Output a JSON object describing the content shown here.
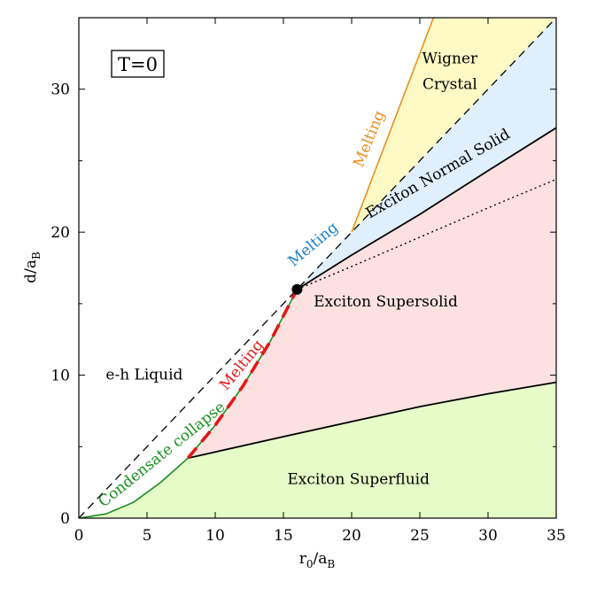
{
  "chart_data": {
    "type": "phase-diagram",
    "title": "",
    "xlabel": {
      "base": "r",
      "sub1": "0",
      "mid": "/a",
      "sub2": "B"
    },
    "ylabel": {
      "base": "d/a",
      "sub": "B"
    },
    "xlim": [
      0,
      35
    ],
    "ylim": [
      0,
      35
    ],
    "xticks": [
      0,
      5,
      10,
      15,
      20,
      25,
      30,
      35
    ],
    "yticks": [
      0,
      10,
      20,
      30
    ],
    "yminor": [
      5,
      15,
      25
    ],
    "grid": false,
    "condition_label": "T=0",
    "critical_point": [
      16,
      16
    ],
    "regions": [
      {
        "name": "Exciton Superfluid",
        "label": "Exciton Superfluid",
        "color": "#e6fcc8",
        "label_at": [
          20.5,
          2.4
        ]
      },
      {
        "name": "Exciton Supersolid",
        "label": "Exciton Supersolid",
        "color": "#fde1e1",
        "label_at": [
          22.5,
          14.8
        ]
      },
      {
        "name": "Exciton Normal Solid",
        "label": "Exciton Normal Solid",
        "color": "#e0effc",
        "label_at": [
          26.5,
          23.8
        ],
        "angle_deg": -30
      },
      {
        "name": "Wigner Crystal",
        "label_line1": "Wigner",
        "label_line2": "Crystal",
        "color": "#fdfac5",
        "label_at": [
          27.2,
          31.8
        ]
      },
      {
        "name": "e-h Liquid",
        "label": "e-h Liquid",
        "color": "#ffffff",
        "label_at": [
          4.8,
          9.7
        ]
      }
    ],
    "boundaries": [
      {
        "name": "diagonal-boundary",
        "style": "dashed",
        "color": "#000000",
        "points": [
          [
            0,
            0
          ],
          [
            35,
            35
          ]
        ]
      },
      {
        "name": "superfluid-supersolid-boundary",
        "style": "solid",
        "color": "#000000",
        "points": [
          [
            8,
            4.2
          ],
          [
            15,
            5.7
          ],
          [
            20,
            6.75
          ],
          [
            25,
            7.8
          ],
          [
            30,
            8.7
          ],
          [
            35,
            9.5
          ]
        ]
      },
      {
        "name": "normal-solid-boundary",
        "style": "solid",
        "color": "#000000",
        "points": [
          [
            16,
            16
          ],
          [
            20,
            18.4
          ],
          [
            25,
            21.25
          ],
          [
            30,
            24.3
          ],
          [
            35,
            27.3
          ]
        ]
      },
      {
        "name": "supersolid-melting-extension",
        "style": "dotted",
        "color": "#000000",
        "points": [
          [
            16,
            16
          ],
          [
            20,
            17.6
          ],
          [
            25,
            19.65
          ],
          [
            30,
            21.7
          ],
          [
            35,
            23.7
          ]
        ]
      },
      {
        "name": "wigner-melting-line",
        "style": "solid",
        "color": "#e89023",
        "points": [
          [
            20,
            20
          ],
          [
            26,
            35
          ]
        ]
      },
      {
        "name": "condensate-collapse-curve",
        "style": "solid",
        "color": "#17901f",
        "points": [
          [
            0,
            0
          ],
          [
            2,
            0.3
          ],
          [
            4,
            1.1
          ],
          [
            6,
            2.5
          ],
          [
            8,
            4.2
          ],
          [
            10,
            6.5
          ],
          [
            12,
            9.2
          ],
          [
            14,
            12.3
          ],
          [
            16,
            16
          ]
        ]
      },
      {
        "name": "supersolid-melting-line",
        "style": "dashed",
        "color": "#e41818",
        "points": [
          [
            8,
            4.2
          ],
          [
            10,
            6.5
          ],
          [
            12,
            9.2
          ],
          [
            14,
            12.3
          ],
          [
            16,
            16
          ]
        ]
      }
    ],
    "annotations": [
      {
        "name": "condensate-collapse-label",
        "text": "Condensate collapse",
        "color": "#17901f",
        "at": [
          6.3,
          4.2
        ],
        "angle_deg": -39
      },
      {
        "name": "red-melting-label",
        "text": "Melting",
        "color": "#e41818",
        "at": [
          12.2,
          10.5
        ],
        "angle_deg": -51
      },
      {
        "name": "blue-melting-label",
        "text": "Melting",
        "color": "#1f82cc",
        "at": [
          17.4,
          18.9
        ],
        "angle_deg": -40
      },
      {
        "name": "orange-melting-label",
        "text": "Melting",
        "color": "#e89023",
        "at": [
          21.6,
          26.4
        ],
        "angle_deg": -68
      }
    ]
  }
}
